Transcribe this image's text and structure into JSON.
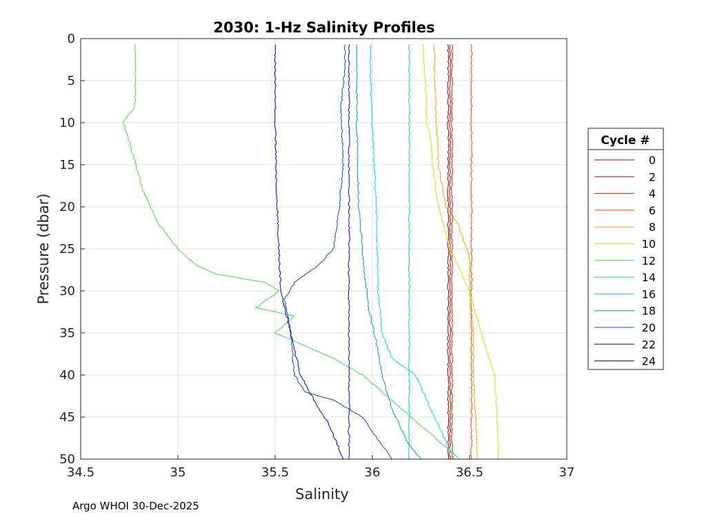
{
  "chart_data": {
    "type": "line",
    "title": "2030: 1-Hz Salinity Profiles",
    "xlabel": "Salinity",
    "ylabel": "Pressure (dbar)",
    "xlim": [
      34.5,
      37
    ],
    "ylim": [
      0,
      50
    ],
    "y_reversed": true,
    "grid": true,
    "xticks": [
      "34.5",
      "35",
      "35.5",
      "36",
      "36.5",
      "37"
    ],
    "yticks": [
      "0",
      "5",
      "10",
      "15",
      "20",
      "25",
      "30",
      "35",
      "40",
      "45",
      "50"
    ],
    "legend": {
      "title": "Cycle #",
      "position": "right"
    },
    "series": [
      {
        "name": "0",
        "color": "#8b0000",
        "pressure": [
          0.7,
          10,
          20,
          30,
          40,
          50
        ],
        "salinity": [
          36.39,
          36.39,
          36.39,
          36.39,
          36.39,
          36.39
        ]
      },
      {
        "name": "2",
        "color": "#c00000",
        "pressure": [
          0.7,
          10,
          20,
          30,
          40,
          50
        ],
        "salinity": [
          36.4,
          36.4,
          36.4,
          36.4,
          36.4,
          36.4
        ]
      },
      {
        "name": "4",
        "color": "#d01a00",
        "pressure": [
          0.7,
          10,
          20,
          30,
          40,
          50
        ],
        "salinity": [
          36.41,
          36.41,
          36.41,
          36.41,
          36.41,
          36.41
        ]
      },
      {
        "name": "6",
        "color": "#e84a00",
        "pressure": [
          0.7,
          10,
          20,
          30,
          40,
          50
        ],
        "salinity": [
          36.51,
          36.51,
          36.51,
          36.51,
          36.51,
          36.51
        ]
      },
      {
        "name": "8",
        "color": "#f4a000",
        "pressure": [
          0.7,
          5,
          10,
          15,
          20,
          22,
          26,
          30,
          35,
          40,
          45,
          50
        ],
        "salinity": [
          36.32,
          36.32,
          36.33,
          36.34,
          36.38,
          36.44,
          36.5,
          36.5,
          36.52,
          36.52,
          36.53,
          36.54
        ]
      },
      {
        "name": "10",
        "color": "#c8e600",
        "pressure": [
          0.7,
          5,
          8,
          10,
          12,
          15,
          20,
          25,
          30,
          35,
          38,
          40,
          45,
          50
        ],
        "salinity": [
          36.26,
          36.27,
          36.28,
          36.28,
          36.3,
          36.31,
          36.34,
          36.4,
          36.5,
          36.56,
          36.6,
          36.63,
          36.64,
          36.65
        ]
      },
      {
        "name": "12",
        "color": "#3cdc3c",
        "pressure": [
          0.7,
          8,
          10,
          13,
          18,
          22,
          25,
          27,
          28,
          29,
          30,
          32,
          33,
          35,
          38,
          40,
          43,
          48,
          50
        ],
        "salinity": [
          34.78,
          34.78,
          34.72,
          34.76,
          34.82,
          34.9,
          35.0,
          35.1,
          35.2,
          35.45,
          35.52,
          35.4,
          35.6,
          35.5,
          35.8,
          35.95,
          36.1,
          36.35,
          36.45
        ]
      },
      {
        "name": "14",
        "color": "#00e08c",
        "pressure": [
          0.7,
          10,
          20,
          30,
          40,
          50
        ],
        "salinity": [
          36.19,
          36.19,
          36.19,
          36.19,
          36.19,
          36.19
        ]
      },
      {
        "name": "16",
        "color": "#00d6d6",
        "pressure": [
          0.7,
          5,
          10,
          15,
          20,
          30,
          35,
          38,
          40,
          45,
          50
        ],
        "salinity": [
          35.99,
          35.99,
          36.0,
          36.01,
          36.02,
          36.03,
          36.05,
          36.1,
          36.22,
          36.32,
          36.42
        ]
      },
      {
        "name": "18",
        "color": "#0096c8",
        "pressure": [
          0.7,
          10,
          20,
          25,
          28,
          32,
          36,
          40,
          44,
          48,
          50
        ],
        "salinity": [
          35.92,
          35.92,
          35.93,
          35.95,
          35.96,
          35.98,
          36.02,
          36.05,
          36.1,
          36.18,
          36.25
        ]
      },
      {
        "name": "20",
        "color": "#0050c8",
        "pressure": [
          0.7,
          3,
          8,
          15,
          20,
          25,
          27,
          29,
          31,
          35,
          40,
          42,
          43,
          45,
          50
        ],
        "salinity": [
          35.86,
          35.86,
          35.84,
          35.85,
          35.83,
          35.8,
          35.72,
          35.6,
          35.55,
          35.58,
          35.6,
          35.65,
          35.8,
          35.95,
          36.1
        ]
      },
      {
        "name": "22",
        "color": "#0000b4",
        "pressure": [
          0.7,
          10,
          20,
          30,
          35,
          40,
          43,
          46,
          50
        ],
        "salinity": [
          35.5,
          35.5,
          35.51,
          35.53,
          35.58,
          35.63,
          35.7,
          35.78,
          35.85
        ]
      },
      {
        "name": "24",
        "color": "#0000e6",
        "pressure": [
          0.7,
          10,
          20,
          30,
          40,
          50
        ],
        "salinity": [
          35.88,
          35.88,
          35.88,
          35.88,
          35.88,
          35.88
        ]
      }
    ]
  },
  "footer": {
    "text": "Argo WHOI 30-Dec-2025"
  }
}
